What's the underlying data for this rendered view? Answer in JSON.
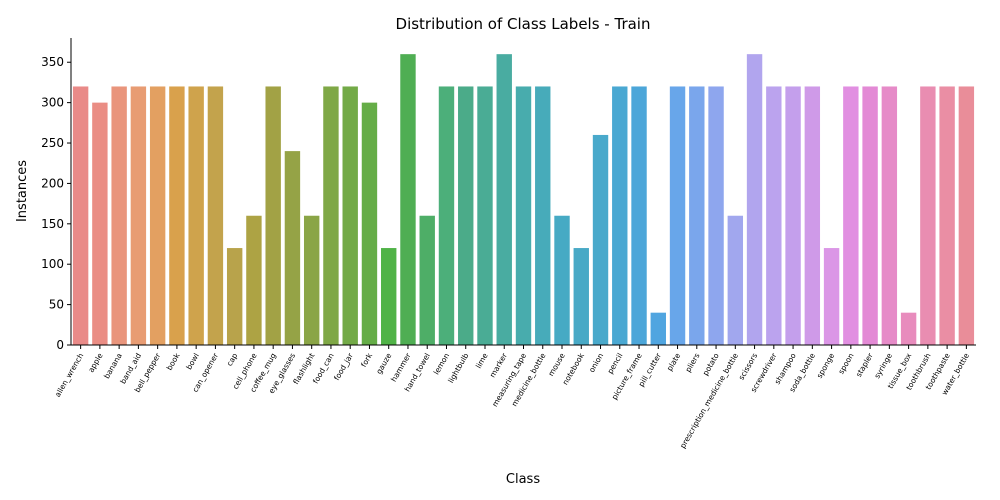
{
  "chart_data": {
    "type": "bar",
    "title": "Distribution of Class Labels - Train",
    "xlabel": "Class",
    "ylabel": "Instances",
    "ylim": [
      0,
      380
    ],
    "yticks": [
      0,
      50,
      100,
      150,
      200,
      250,
      300,
      350
    ],
    "grid": false,
    "legend": "none",
    "categories": [
      "allen_wrench",
      "apple",
      "banana",
      "band_aid",
      "bell_pepper",
      "book",
      "bowl",
      "can_opener",
      "cap",
      "cell_phone",
      "coffee_mug",
      "eye_glasses",
      "flashlight",
      "food_can",
      "food_jar",
      "fork",
      "gauze",
      "hammer",
      "hand_towel",
      "lemon",
      "lightbulb",
      "lime",
      "marker",
      "measuring_tape",
      "medicine_bottle",
      "mouse",
      "notebook",
      "onion",
      "pencil",
      "picture_frame",
      "pill_cutter",
      "plate",
      "pliers",
      "potato",
      "prescription_medicine_bottle",
      "scissors",
      "screwdriver",
      "shampoo",
      "soda_bottle",
      "sponge",
      "spoon",
      "stapler",
      "syringe",
      "tissue_box",
      "toothbrush",
      "toothpaste",
      "water_bottle"
    ],
    "values": [
      320,
      300,
      320,
      320,
      320,
      320,
      320,
      320,
      120,
      160,
      320,
      240,
      160,
      320,
      320,
      300,
      120,
      360,
      160,
      320,
      320,
      320,
      360,
      320,
      320,
      160,
      120,
      260,
      320,
      320,
      40,
      320,
      320,
      320,
      160,
      360,
      320,
      320,
      320,
      120,
      320,
      320,
      320,
      40,
      320,
      320,
      320
    ],
    "colors": [
      "#e98a88",
      "#ea8d84",
      "#e9957c",
      "#e89c73",
      "#e3a061",
      "#d9a14c",
      "#cfa34c",
      "#c3a34c",
      "#b8a34b",
      "#ada344",
      "#a2a245",
      "#95a346",
      "#8aa546",
      "#7fa846",
      "#73aa47",
      "#65ad47",
      "#50b347",
      "#4fae53",
      "#4eae67",
      "#4caf7a",
      "#4bab89",
      "#4aac95",
      "#49aca1",
      "#48acad",
      "#47abba",
      "#46aac4",
      "#48a9c6",
      "#49a9cb",
      "#4aa8d2",
      "#4ca6d9",
      "#50a5e0",
      "#68a6ea",
      "#7aa6ec",
      "#8ea6ee",
      "#a1a7ee",
      "#b1a5ee",
      "#bba3ee",
      "#c49fec",
      "#cf9ae8",
      "#db96e6",
      "#e18fe1",
      "#e38ad5",
      "#e68bc8",
      "#e88cbd",
      "#e98db1",
      "#ea8ea4",
      "#e98d99"
    ]
  }
}
